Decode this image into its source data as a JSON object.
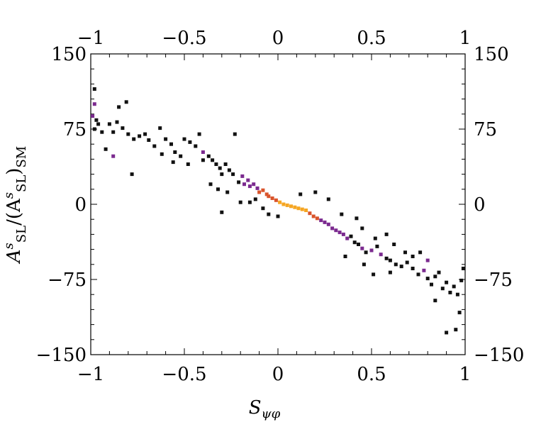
{
  "chart_data": {
    "type": "heatmap",
    "title": "",
    "xlabel": "S",
    "xlabel_sub": "ψφ",
    "ylabel": "A^s_SL/(A^s_SL)_SM",
    "ylabel_parts": {
      "a": "A",
      "s1": "s",
      "sub1": "SL",
      "mid": "/(A",
      "s2": "s",
      "sub2": "SL",
      "close": ")",
      "sub3": "SM"
    },
    "xlim": [
      -1,
      1
    ],
    "ylim": [
      -150,
      150
    ],
    "x_ticks": [
      -1,
      -0.5,
      0,
      0.5,
      1
    ],
    "x_tick_labels": [
      "−1",
      "−0.5",
      "0",
      "0.5",
      "1"
    ],
    "y_ticks": [
      -150,
      -75,
      0,
      75,
      150
    ],
    "y_tick_labels": [
      "−150",
      "−75",
      "0",
      "75",
      "150"
    ],
    "grid": false,
    "colors": {
      "low": "#111111",
      "mid": "#7b2a8f",
      "high": "#d9542b",
      "peak": "#f5a623"
    },
    "points": [
      [
        -0.98,
        115,
        0
      ],
      [
        -0.98,
        100,
        1
      ],
      [
        -0.99,
        88,
        1
      ],
      [
        -0.97,
        84,
        0
      ],
      [
        -0.96,
        80,
        0
      ],
      [
        -0.98,
        75,
        0
      ],
      [
        -0.94,
        72,
        0
      ],
      [
        -0.9,
        80,
        0
      ],
      [
        -0.88,
        72,
        0
      ],
      [
        -0.85,
        97,
        0
      ],
      [
        -0.81,
        102,
        0
      ],
      [
        -0.86,
        82,
        0
      ],
      [
        -0.83,
        76,
        0
      ],
      [
        -0.8,
        70,
        0
      ],
      [
        -0.77,
        65,
        0
      ],
      [
        -0.74,
        68,
        0
      ],
      [
        -0.71,
        70,
        0
      ],
      [
        -0.69,
        64,
        0
      ],
      [
        -0.66,
        58,
        0
      ],
      [
        -0.63,
        76,
        0
      ],
      [
        -0.6,
        65,
        0
      ],
      [
        -0.57,
        60,
        0
      ],
      [
        -0.55,
        52,
        0
      ],
      [
        -0.52,
        48,
        0
      ],
      [
        -0.5,
        65,
        0
      ],
      [
        -0.47,
        62,
        0
      ],
      [
        -0.44,
        58,
        0
      ],
      [
        -0.42,
        70,
        0
      ],
      [
        -0.4,
        52,
        1
      ],
      [
        -0.37,
        48,
        0
      ],
      [
        -0.35,
        44,
        0
      ],
      [
        -0.33,
        40,
        0
      ],
      [
        -0.31,
        36,
        0
      ],
      [
        -0.3,
        30,
        0
      ],
      [
        -0.28,
        40,
        0
      ],
      [
        -0.26,
        34,
        0
      ],
      [
        -0.24,
        30,
        0
      ],
      [
        -0.23,
        70,
        0
      ],
      [
        -0.21,
        22,
        0
      ],
      [
        -0.19,
        28,
        1
      ],
      [
        -0.18,
        20,
        1
      ],
      [
        -0.16,
        24,
        1
      ],
      [
        -0.15,
        18,
        1
      ],
      [
        -0.13,
        20,
        1
      ],
      [
        -0.11,
        16,
        1
      ],
      [
        -0.1,
        12,
        2
      ],
      [
        -0.08,
        14,
        2
      ],
      [
        -0.06,
        10,
        2
      ],
      [
        -0.05,
        8,
        2
      ],
      [
        -0.03,
        6,
        2
      ],
      [
        -0.01,
        4,
        2
      ],
      [
        0.01,
        2,
        3
      ],
      [
        0.03,
        0,
        3
      ],
      [
        0.05,
        -1,
        3
      ],
      [
        0.07,
        -2,
        3
      ],
      [
        0.09,
        -3,
        3
      ],
      [
        0.11,
        -4,
        3
      ],
      [
        0.13,
        -5,
        3
      ],
      [
        0.15,
        -6,
        3
      ],
      [
        0.17,
        -9,
        2
      ],
      [
        0.19,
        -12,
        2
      ],
      [
        0.21,
        -14,
        2
      ],
      [
        0.23,
        -16,
        1
      ],
      [
        0.25,
        -18,
        1
      ],
      [
        0.27,
        -20,
        1
      ],
      [
        0.29,
        -24,
        1
      ],
      [
        0.31,
        -26,
        1
      ],
      [
        0.33,
        -28,
        1
      ],
      [
        0.35,
        -30,
        1
      ],
      [
        0.37,
        -34,
        1
      ],
      [
        0.39,
        -32,
        0
      ],
      [
        0.41,
        -38,
        0
      ],
      [
        0.43,
        -40,
        0
      ],
      [
        0.45,
        -44,
        1
      ],
      [
        0.47,
        -48,
        0
      ],
      [
        0.5,
        -46,
        1
      ],
      [
        0.53,
        -42,
        0
      ],
      [
        0.55,
        -50,
        1
      ],
      [
        0.58,
        -54,
        0
      ],
      [
        0.6,
        -56,
        0
      ],
      [
        0.63,
        -60,
        0
      ],
      [
        0.66,
        -62,
        0
      ],
      [
        0.69,
        -58,
        0
      ],
      [
        0.72,
        -64,
        0
      ],
      [
        0.75,
        -70,
        0
      ],
      [
        0.78,
        -66,
        1
      ],
      [
        0.8,
        -74,
        0
      ],
      [
        0.82,
        -80,
        0
      ],
      [
        0.84,
        -72,
        0
      ],
      [
        0.86,
        -68,
        0
      ],
      [
        0.88,
        -84,
        0
      ],
      [
        0.9,
        -78,
        0
      ],
      [
        0.92,
        -88,
        0
      ],
      [
        0.94,
        -82,
        0
      ],
      [
        0.96,
        -90,
        0
      ],
      [
        0.98,
        -76,
        0
      ],
      [
        0.99,
        -64,
        0
      ],
      [
        0.97,
        -108,
        0
      ],
      [
        0.95,
        -125,
        0
      ],
      [
        0.9,
        -128,
        0
      ],
      [
        0.84,
        -96,
        0
      ],
      [
        0.8,
        -56,
        1
      ],
      [
        0.76,
        -48,
        0
      ],
      [
        0.72,
        -52,
        0
      ],
      [
        0.68,
        -48,
        0
      ],
      [
        0.62,
        -40,
        0
      ],
      [
        0.58,
        -30,
        0
      ],
      [
        0.52,
        -34,
        0
      ],
      [
        -0.3,
        -8,
        0
      ],
      [
        -0.12,
        5,
        0
      ],
      [
        -0.05,
        -10,
        0
      ],
      [
        -0.92,
        55,
        0
      ],
      [
        -0.88,
        48,
        1
      ],
      [
        -0.78,
        30,
        0
      ],
      [
        -0.62,
        50,
        0
      ],
      [
        -0.56,
        42,
        0
      ],
      [
        -0.48,
        40,
        0
      ],
      [
        -0.4,
        44,
        0
      ],
      [
        -0.36,
        20,
        0
      ],
      [
        -0.32,
        15,
        0
      ],
      [
        -0.27,
        12,
        0
      ],
      [
        -0.2,
        2,
        0
      ],
      [
        -0.15,
        2,
        0
      ],
      [
        -0.08,
        -4,
        0
      ],
      [
        0.0,
        -12,
        0
      ],
      [
        0.12,
        10,
        0
      ],
      [
        0.2,
        12,
        0
      ],
      [
        0.27,
        5,
        0
      ],
      [
        0.34,
        -10,
        0
      ],
      [
        0.42,
        -14,
        0
      ],
      [
        0.46,
        -60,
        0
      ],
      [
        0.51,
        -70,
        0
      ],
      [
        0.36,
        -52,
        0
      ],
      [
        0.45,
        -24,
        0
      ],
      [
        0.6,
        -68,
        0
      ]
    ]
  }
}
